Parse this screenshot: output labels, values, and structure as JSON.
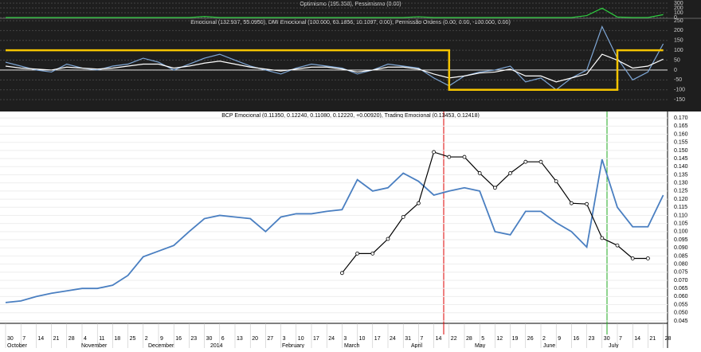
{
  "chart_data": [
    {
      "type": "line",
      "title": "Optimismo (195.358), Pessimismo (0.00)",
      "series": [
        {
          "color": "#2ecc40",
          "values": [
            0,
            0,
            0,
            0,
            0,
            0,
            0,
            0,
            0,
            0,
            0,
            0,
            0,
            20,
            0,
            0,
            0,
            0,
            0,
            0,
            0,
            0,
            0,
            0,
            0,
            0,
            0,
            15,
            0,
            0,
            0,
            0,
            0,
            0,
            0,
            0,
            0,
            0,
            40,
            195,
            10,
            0,
            0,
            60
          ]
        }
      ],
      "ylim": [
        -17,
        367
      ],
      "yticks": [
        0,
        100,
        200,
        300
      ]
    },
    {
      "type": "line",
      "title": "Emocional (132.937, 55.0950), DMI Emocional (100.000, 63.1856, 10.1097, 0.00), Permissão Ordens (0.00, 0.00, -100.000, 0.00)",
      "series": [
        {
          "color": "#7fa7d6",
          "values": [
            40,
            20,
            0,
            -10,
            30,
            10,
            0,
            20,
            30,
            60,
            40,
            0,
            30,
            60,
            80,
            50,
            20,
            0,
            -20,
            10,
            30,
            20,
            10,
            -20,
            0,
            30,
            20,
            10,
            -40,
            -80,
            -30,
            -10,
            0,
            20,
            -60,
            -40,
            -100,
            -40,
            0,
            220,
            60,
            -50,
            -10,
            133
          ]
        },
        {
          "color": "#ffffff",
          "values": [
            20,
            10,
            5,
            0,
            15,
            10,
            5,
            10,
            20,
            30,
            30,
            10,
            20,
            35,
            45,
            30,
            15,
            5,
            -5,
            5,
            15,
            15,
            5,
            -10,
            0,
            15,
            15,
            5,
            -20,
            -40,
            -30,
            -15,
            -10,
            5,
            -30,
            -30,
            -60,
            -40,
            -20,
            80,
            50,
            10,
            20,
            55
          ]
        },
        {
          "color": "#f5c400",
          "step": true,
          "values": [
            100,
            100,
            100,
            100,
            100,
            100,
            100,
            100,
            100,
            100,
            100,
            100,
            100,
            100,
            100,
            100,
            100,
            100,
            100,
            100,
            100,
            100,
            100,
            100,
            100,
            100,
            100,
            100,
            100,
            -100,
            -100,
            -100,
            -100,
            -100,
            -100,
            -100,
            -100,
            -100,
            -100,
            -100,
            100,
            100,
            100,
            100
          ]
        }
      ],
      "ylim": [
        -210,
        262
      ],
      "yticks": [
        -150,
        -100,
        -50,
        0,
        50,
        100,
        150,
        200,
        250
      ]
    },
    {
      "type": "line",
      "title": "BCP Emocional (0.11350, 0.12240, 0.11080, 0.12220, +0.00920), Trading Emocional (0.13453, 0.12418)",
      "categories": [
        "30",
        "7",
        "14",
        "21",
        "28",
        "4",
        "11",
        "18",
        "25",
        "2",
        "9",
        "16",
        "23",
        "30",
        "6",
        "13",
        "20",
        "27",
        "3",
        "10",
        "17",
        "24",
        "3",
        "10",
        "17",
        "24",
        "31",
        "7",
        "14",
        "22",
        "28",
        "5",
        "12",
        "19",
        "26",
        "2",
        "9",
        "16",
        "23",
        "30",
        "7",
        "14",
        "21",
        "28"
      ],
      "months": [
        "October",
        "November",
        "December",
        "2014",
        "February",
        "March",
        "April",
        "May",
        "June",
        "July"
      ],
      "series": [
        {
          "color": "#4a7fc1",
          "values": [
            0.0563,
            0.0573,
            0.06,
            0.062,
            0.0635,
            0.065,
            0.065,
            0.067,
            0.073,
            0.0845,
            0.088,
            0.0915,
            0.1,
            0.108,
            0.11,
            0.109,
            0.108,
            0.1,
            0.109,
            0.111,
            0.111,
            0.1125,
            0.1135,
            0.132,
            0.125,
            0.127,
            0.136,
            0.131,
            0.1225,
            0.125,
            0.127,
            0.125,
            0.1,
            0.098,
            0.1125,
            0.1125,
            0.1055,
            0.1,
            0.0905,
            0.1445,
            0.115,
            0.103,
            0.103,
            0.1225
          ]
        },
        {
          "color": "#000000",
          "markers": true,
          "values": [
            null,
            null,
            null,
            null,
            null,
            null,
            null,
            null,
            null,
            null,
            null,
            null,
            null,
            null,
            null,
            null,
            null,
            null,
            null,
            null,
            null,
            null,
            0.0745,
            0.0865,
            0.0865,
            0.0955,
            0.109,
            0.1175,
            0.149,
            0.146,
            0.146,
            0.136,
            0.127,
            0.136,
            0.143,
            0.143,
            0.131,
            0.1175,
            0.117,
            0.096,
            0.0915,
            0.0835,
            0.0835,
            null
          ]
        }
      ],
      "ylim": [
        0.0435,
        0.174
      ],
      "yticks": [
        {
          "value": 0.045,
          "label": "0.045"
        },
        {
          "value": 0.05,
          "label": "0.050"
        },
        {
          "value": 0.055,
          "label": "0.055"
        },
        {
          "value": 0.06,
          "label": "0.060"
        },
        {
          "value": 0.065,
          "label": "0.065"
        },
        {
          "value": 0.07,
          "label": "0.070"
        },
        {
          "value": 0.075,
          "label": "0.075"
        },
        {
          "value": 0.08,
          "label": "0.080"
        },
        {
          "value": 0.085,
          "label": "0.085"
        },
        {
          "value": 0.09,
          "label": "0.090"
        },
        {
          "value": 0.095,
          "label": "0.095"
        },
        {
          "value": 0.1,
          "label": "0.100"
        },
        {
          "value": 0.105,
          "label": "0.105"
        },
        {
          "value": 0.11,
          "label": "0.110"
        },
        {
          "value": 0.115,
          "label": "0.115"
        },
        {
          "value": 0.12,
          "label": "0.120"
        },
        {
          "value": 0.125,
          "label": "0.125"
        },
        {
          "value": 0.13,
          "label": "0.130"
        },
        {
          "value": 0.135,
          "label": "0.135"
        },
        {
          "value": 0.14,
          "label": "0.140"
        },
        {
          "value": 0.145,
          "label": "0.145"
        },
        {
          "value": 0.15,
          "label": "0.150"
        },
        {
          "value": 0.155,
          "label": "0.155"
        },
        {
          "value": 0.16,
          "label": "0.160"
        },
        {
          "value": 0.165,
          "label": "0.165"
        },
        {
          "value": 0.17,
          "label": "0.170"
        }
      ]
    }
  ]
}
